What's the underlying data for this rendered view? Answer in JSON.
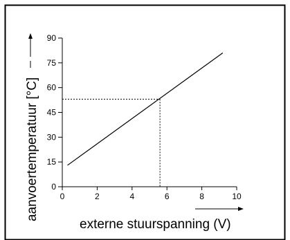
{
  "chart_data": {
    "type": "line",
    "xlabel": "externe stuurspanning  (V)",
    "ylabel": "aanvoertemperatuur [°C]",
    "xlim": [
      0,
      10
    ],
    "ylim": [
      0,
      90
    ],
    "x_ticks": [
      0,
      2,
      4,
      6,
      8,
      10
    ],
    "y_ticks": [
      0,
      15,
      30,
      45,
      60,
      75,
      90
    ],
    "grid": false,
    "series": [
      {
        "x": [
          0.3,
          9.2
        ],
        "y": [
          13,
          81
        ]
      }
    ],
    "reference_point": {
      "x": 5.6,
      "y": 53
    }
  }
}
